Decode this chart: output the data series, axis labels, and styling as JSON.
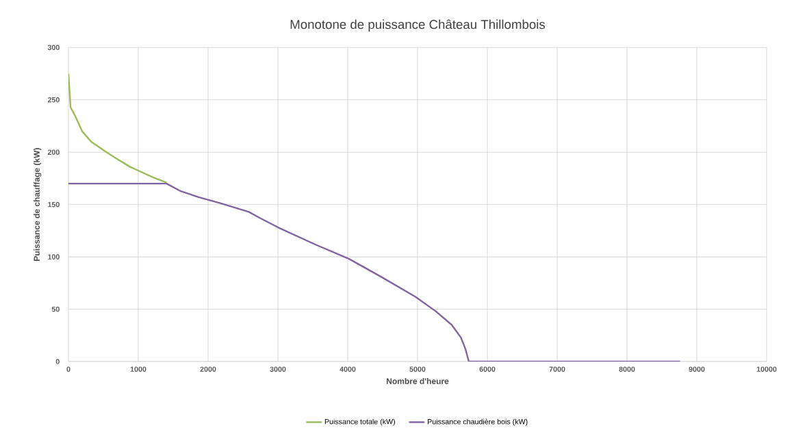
{
  "chart_data": {
    "type": "line",
    "title": "Monotone de puissance Château Thillombois",
    "xlabel": "Nombre d'heure",
    "ylabel": "Puissance de chauffage (kW)",
    "xlim": [
      0,
      10000
    ],
    "xticks": [
      0,
      1000,
      2000,
      3000,
      4000,
      5000,
      6000,
      7000,
      8000,
      9000,
      10000
    ],
    "ylim": [
      0,
      300
    ],
    "yticks": [
      0,
      50,
      100,
      150,
      200,
      250,
      300
    ],
    "grid": true,
    "legend": "bottom",
    "series": [
      {
        "name": "Puissance totale (kW)",
        "color": "#9bbb59",
        "x": [
          0,
          30,
          100,
          196,
          326,
          523,
          686,
          882,
          1013,
          1209,
          1405
        ],
        "values": [
          275,
          243,
          234,
          220,
          210,
          201,
          194,
          186,
          182,
          176,
          171
        ]
      },
      {
        "name": "Puissance chaudière bois (kW)",
        "color": "#8064a2",
        "x": [
          0,
          1405,
          1601,
          1863,
          2189,
          2582,
          2745,
          3007,
          3529,
          4020,
          4477,
          4967,
          5262,
          5490,
          5621,
          5686,
          5735,
          8760
        ],
        "values": [
          170,
          170,
          163,
          157,
          151,
          143,
          137,
          128,
          112,
          98,
          81,
          62,
          48,
          35,
          23,
          12,
          0,
          0
        ]
      }
    ]
  }
}
